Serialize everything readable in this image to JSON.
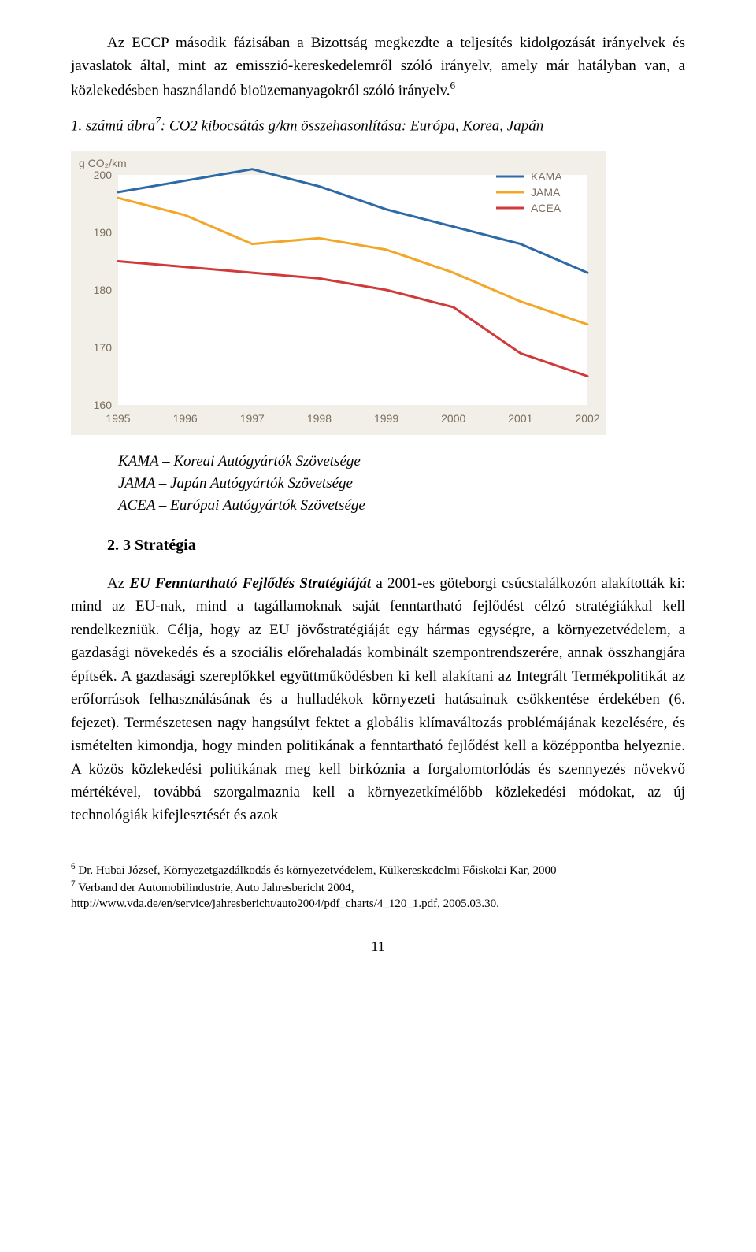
{
  "para1_html": "Az ECCP második fázisában a Bizottság megkezdte a teljesítés kidolgozását irányelvek és javaslatok által, mint az emisszió-kereskedelemről szóló irányelv, amely már hatályban van, a közlekedésben használandó bioüzemanyagokról szóló irányelv.<span class=\"sup\">6</span>",
  "figure_caption_html": "1. számú ábra<span class=\"sup\">7</span>: CO2 kibocsátás g/km összehasonlítása: Európa, Korea, Japán",
  "chart": {
    "type": "line",
    "y_axis_label": "g CO₂/km",
    "xlim": [
      1995,
      2002
    ],
    "ylim": [
      160,
      200
    ],
    "xticks": [
      1995,
      1996,
      1997,
      1998,
      1999,
      2000,
      2001,
      2002
    ],
    "yticks": [
      160,
      170,
      180,
      190,
      200
    ],
    "background_color": "#ffffff",
    "outer_bg": "#f2efe8",
    "axis_label_color": "#7a6f60",
    "tick_fontsize": 14,
    "line_width": 3,
    "legend": {
      "position": "top-right",
      "items": [
        {
          "label": "KAMA",
          "color": "#2d6aa6"
        },
        {
          "label": "JAMA",
          "color": "#f2a728"
        },
        {
          "label": "ACEA",
          "color": "#d13a3a"
        }
      ]
    },
    "series": [
      {
        "name": "KAMA",
        "color": "#2d6aa6",
        "x": [
          1995,
          1996,
          1997,
          1998,
          1999,
          2000,
          2001,
          2002
        ],
        "y": [
          197,
          199,
          201,
          198,
          194,
          191,
          188,
          183
        ]
      },
      {
        "name": "JAMA",
        "color": "#f2a728",
        "x": [
          1995,
          1996,
          1997,
          1998,
          1999,
          2000,
          2001,
          2002
        ],
        "y": [
          196,
          193,
          188,
          189,
          187,
          183,
          178,
          174
        ]
      },
      {
        "name": "ACEA",
        "color": "#d13a3a",
        "x": [
          1995,
          1996,
          1997,
          1998,
          1999,
          2000,
          2001,
          2002
        ],
        "y": [
          185,
          184,
          183,
          182,
          180,
          177,
          169,
          165
        ]
      }
    ]
  },
  "legend_block": {
    "line1": "KAMA – Koreai Autógyártók Szövetsége",
    "line2": "JAMA – Japán Autógyártók Szövetsége",
    "line3": "ACEA – Európai Autógyártók Szövetsége"
  },
  "heading2": "2. 3 Stratégia",
  "para2_html": "Az <b><i>EU Fenntartható Fejlődés Stratégiáját</i></b> a 2001-es göteborgi csúcstalálkozón alakították ki: mind az EU-nak, mind a tagállamoknak saját fenntartható fejlődést célzó stratégiákkal kell rendelkezniük. Célja, hogy az EU jövőstratégiáját egy hármas egységre, a környezetvédelem, a gazdasági növekedés és a szociális előrehaladás kombinált szempontrendszerére, annak összhangjára építsék. A gazdasági szereplőkkel együttműködésben ki kell alakítani az Integrált Termékpolitikát az erőforrások felhasználásának és a hulladékok környezeti hatásainak csökkentése érdekében (6. fejezet). Természetesen nagy hangsúlyt fektet a globális klímaváltozás problémájának kezelésére, és ismételten kimondja, hogy minden politikának a fenntartható fejlődést kell a középpontba helyeznie. A közös közlekedési politikának meg kell birkóznia a forgalomtorlódás és szennyezés növekvő mértékével, továbbá szorgalmaznia kell a környezetkímélőbb közlekedési módokat, az új technológiák kifejlesztését és azok",
  "footnotes": {
    "fn6": "Dr. Hubai József, Környezetgazdálkodás és környezetvédelem, Külkereskedelmi Főiskolai Kar, 2000",
    "fn7_prefix": "Verband der Automobilindustrie, Auto Jahresbericht 2004,",
    "fn7_link": "http://www.vda.de/en/service/jahresbericht/auto2004/pdf_charts/4_120_1.pdf",
    "fn7_suffix": ", 2005.03.30."
  },
  "page_number": "11"
}
